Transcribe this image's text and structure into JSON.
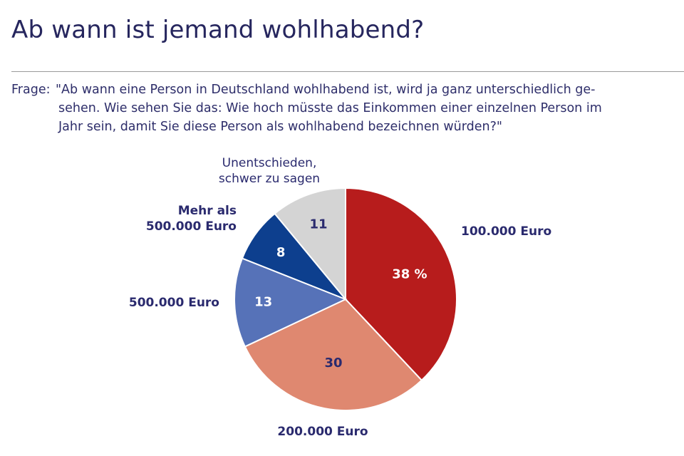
{
  "title": "Ab wann ist jemand wohlhabend?",
  "question": {
    "label": "Frage:",
    "lines": [
      "\"Ab wann eine Person in Deutschland wohlhabend ist, wird ja ganz unterschiedlich ge-",
      "sehen. Wie sehen Sie das: Wie hoch müsste das Einkommen einer einzelnen Person im",
      "Jahr sein, damit Sie diese Person als wohlhabend bezeichnen würden?\""
    ]
  },
  "chart_data": {
    "type": "pie",
    "title": "Ab wann ist jemand wohlhabend?",
    "unit": "%",
    "start": "12 o'clock, clockwise",
    "slices": [
      {
        "label_lines": [
          "100.000 Euro"
        ],
        "value": 38,
        "value_label": "38 %",
        "color": "#b71c1c",
        "value_color": "#ffffff"
      },
      {
        "label_lines": [
          "200.000 Euro"
        ],
        "value": 30,
        "value_label": "30",
        "color": "#df8870",
        "value_color": "#2a2a6e"
      },
      {
        "label_lines": [
          "500.000 Euro"
        ],
        "value": 13,
        "value_label": "13",
        "color": "#5672b8",
        "value_color": "#ffffff"
      },
      {
        "label_lines": [
          "Mehr als",
          "500.000 Euro"
        ],
        "value": 8,
        "value_label": "8",
        "color": "#0d3f8e",
        "value_color": "#ffffff"
      },
      {
        "label_lines": [
          "Unentschieden,",
          "schwer zu sagen"
        ],
        "value": 11,
        "value_label": "11",
        "color": "#d4d4d4",
        "value_color": "#2a2a6e"
      }
    ]
  }
}
